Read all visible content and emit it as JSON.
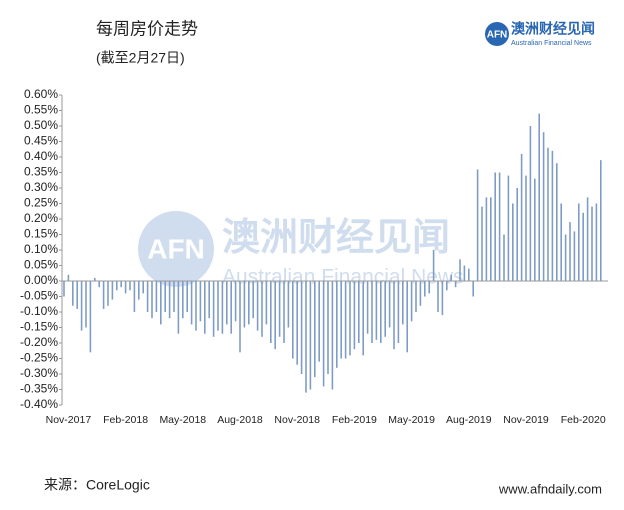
{
  "chart_data": {
    "type": "bar",
    "title": "每周房价走势",
    "subtitle": "(截至2月27日)",
    "source": "来源：CoreLogic",
    "website": "www.afndaily.com",
    "logo": {
      "mark": "AFN",
      "name": "澳洲财经见闻",
      "english": "Australian Financial News"
    },
    "watermark": {
      "mark": "AFN",
      "name": "澳洲财经见闻",
      "english": "Australian Financial News"
    },
    "color": "#7f9cc6",
    "categories": [
      null,
      "Nov-2017",
      null,
      null,
      null,
      null,
      null,
      null,
      null,
      null,
      null,
      null,
      null,
      null,
      "Feb-2018",
      null,
      null,
      null,
      null,
      null,
      null,
      null,
      null,
      null,
      null,
      null,
      null,
      "May-2018",
      null,
      null,
      null,
      null,
      null,
      null,
      null,
      null,
      null,
      null,
      null,
      null,
      "Aug-2018",
      null,
      null,
      null,
      null,
      null,
      null,
      null,
      null,
      null,
      null,
      null,
      null,
      "Nov-2018",
      null,
      null,
      null,
      null,
      null,
      null,
      null,
      null,
      null,
      null,
      null,
      null,
      "Feb-2019",
      null,
      null,
      null,
      null,
      null,
      null,
      null,
      null,
      null,
      null,
      null,
      null,
      "May-2019",
      null,
      null,
      null,
      null,
      null,
      null,
      null,
      null,
      null,
      null,
      null,
      null,
      "Aug-2019",
      null,
      null,
      null,
      null,
      null,
      null,
      null,
      null,
      null,
      null,
      null,
      null,
      "Nov-2019",
      null,
      null,
      null,
      null,
      null,
      null,
      null,
      null,
      null,
      null,
      null,
      null,
      "Feb-2020",
      null,
      null,
      null,
      null
    ],
    "values": [
      -0.05,
      0.02,
      -0.08,
      -0.09,
      -0.16,
      -0.15,
      -0.23,
      0.01,
      -0.02,
      -0.09,
      -0.08,
      -0.06,
      -0.03,
      -0.02,
      -0.04,
      -0.03,
      -0.1,
      -0.06,
      -0.04,
      -0.1,
      -0.12,
      -0.1,
      -0.14,
      -0.1,
      -0.12,
      -0.1,
      -0.17,
      -0.12,
      -0.1,
      -0.14,
      -0.16,
      -0.13,
      -0.17,
      -0.12,
      -0.18,
      -0.16,
      -0.17,
      -0.14,
      -0.17,
      -0.13,
      -0.23,
      -0.15,
      -0.14,
      -0.12,
      -0.16,
      -0.18,
      -0.14,
      -0.2,
      -0.22,
      -0.18,
      -0.2,
      -0.15,
      -0.25,
      -0.27,
      -0.3,
      -0.36,
      -0.35,
      -0.31,
      -0.26,
      -0.34,
      -0.3,
      -0.35,
      -0.28,
      -0.25,
      -0.25,
      -0.24,
      -0.22,
      -0.2,
      -0.24,
      -0.17,
      -0.2,
      -0.19,
      -0.2,
      -0.18,
      -0.15,
      -0.22,
      -0.2,
      -0.14,
      -0.23,
      -0.13,
      -0.1,
      -0.08,
      -0.05,
      -0.04,
      0.1,
      -0.1,
      -0.11,
      -0.03,
      0.02,
      -0.02,
      0.07,
      0.05,
      0.04,
      -0.05,
      0.36,
      0.24,
      0.27,
      0.27,
      0.35,
      0.35,
      0.15,
      0.34,
      0.25,
      0.3,
      0.41,
      0.34,
      0.5,
      0.33,
      0.54,
      0.48,
      0.43,
      0.42,
      0.38,
      0.25,
      0.15,
      0.19,
      0.16,
      0.25,
      0.22,
      0.27,
      0.24,
      0.25,
      0.39
    ],
    "ylim": [
      -0.4,
      0.6
    ],
    "yticks": [
      {
        "value": -0.4,
        "label": "-0.40%"
      },
      {
        "value": -0.35,
        "label": "-0.35%"
      },
      {
        "value": -0.3,
        "label": "-0.30%"
      },
      {
        "value": -0.25,
        "label": "-0.25%"
      },
      {
        "value": -0.2,
        "label": "-0.20%"
      },
      {
        "value": -0.15,
        "label": "-0.15%"
      },
      {
        "value": -0.1,
        "label": "-0.10%"
      },
      {
        "value": -0.05,
        "label": "-0.05%"
      },
      {
        "value": 0,
        "label": "0.00%"
      },
      {
        "value": 0.05,
        "label": "0.05%"
      },
      {
        "value": 0.1,
        "label": "0.10%"
      },
      {
        "value": 0.15,
        "label": "0.15%"
      },
      {
        "value": 0.2,
        "label": "0.20%"
      },
      {
        "value": 0.25,
        "label": "0.25%"
      },
      {
        "value": 0.3,
        "label": "0.30%"
      },
      {
        "value": 0.35,
        "label": "0.35%"
      },
      {
        "value": 0.4,
        "label": "0.40%"
      },
      {
        "value": 0.45,
        "label": "0.45%"
      },
      {
        "value": 0.5,
        "label": "0.50%"
      },
      {
        "value": 0.55,
        "label": "0.55%"
      },
      {
        "value": 0.6,
        "label": "0.60%"
      }
    ]
  }
}
